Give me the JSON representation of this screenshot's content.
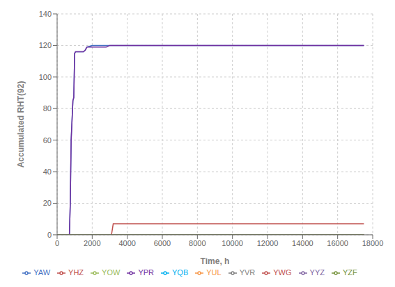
{
  "chart_data": {
    "type": "line",
    "xlabel": "Time, h",
    "ylabel": "Accumulated RHT(92)",
    "xlim": [
      0,
      18000
    ],
    "ylim": [
      0,
      140
    ],
    "xticks": [
      0,
      2000,
      4000,
      6000,
      8000,
      10000,
      12000,
      14000,
      16000,
      18000
    ],
    "yticks": [
      0,
      20,
      40,
      60,
      80,
      100,
      120,
      140
    ],
    "grid": true,
    "legend": "bottom",
    "series": [
      {
        "name": "YAW",
        "color": "#4472c4",
        "x": [
          0,
          700,
          750,
          800,
          900,
          950,
          1000,
          1050,
          1100,
          1500,
          1600,
          1700,
          2000,
          17500
        ],
        "values": [
          0,
          0,
          20,
          60,
          85,
          87,
          115,
          116,
          116,
          116,
          117,
          119,
          120,
          120
        ]
      },
      {
        "name": "YHZ",
        "color": "#c0504d",
        "x": [
          0,
          3100,
          3200,
          17500
        ],
        "values": [
          0,
          0,
          7,
          7
        ]
      },
      {
        "name": "YOW",
        "color": "#9bbb59",
        "x": [
          0,
          17500
        ],
        "values": [
          0,
          0
        ]
      },
      {
        "name": "YPR",
        "color": "#7030a0",
        "x": [
          0,
          700,
          750,
          800,
          900,
          950,
          1000,
          1050,
          1100,
          1500,
          1600,
          1700,
          2000,
          2800,
          3000,
          17500
        ],
        "values": [
          0,
          0,
          20,
          60,
          85,
          87,
          115,
          116,
          116,
          116,
          117,
          119,
          119,
          119,
          120,
          120
        ]
      },
      {
        "name": "YQB",
        "color": "#00b0f0",
        "x": [
          0,
          17500
        ],
        "values": [
          0,
          0
        ]
      },
      {
        "name": "YUL",
        "color": "#f79646",
        "x": [
          0,
          17500
        ],
        "values": [
          0,
          0
        ]
      },
      {
        "name": "YVR",
        "color": "#7f7f7f",
        "x": [
          0,
          17500
        ],
        "values": [
          0,
          0
        ]
      },
      {
        "name": "YWG",
        "color": "#c0504d",
        "x": [
          0,
          17500
        ],
        "values": [
          0,
          0
        ]
      },
      {
        "name": "YYZ",
        "color": "#8064a2",
        "x": [
          0,
          17500
        ],
        "values": [
          0,
          0
        ]
      },
      {
        "name": "YZF",
        "color": "#76933c",
        "x": [
          0,
          17500
        ],
        "values": [
          0,
          0
        ]
      }
    ]
  }
}
